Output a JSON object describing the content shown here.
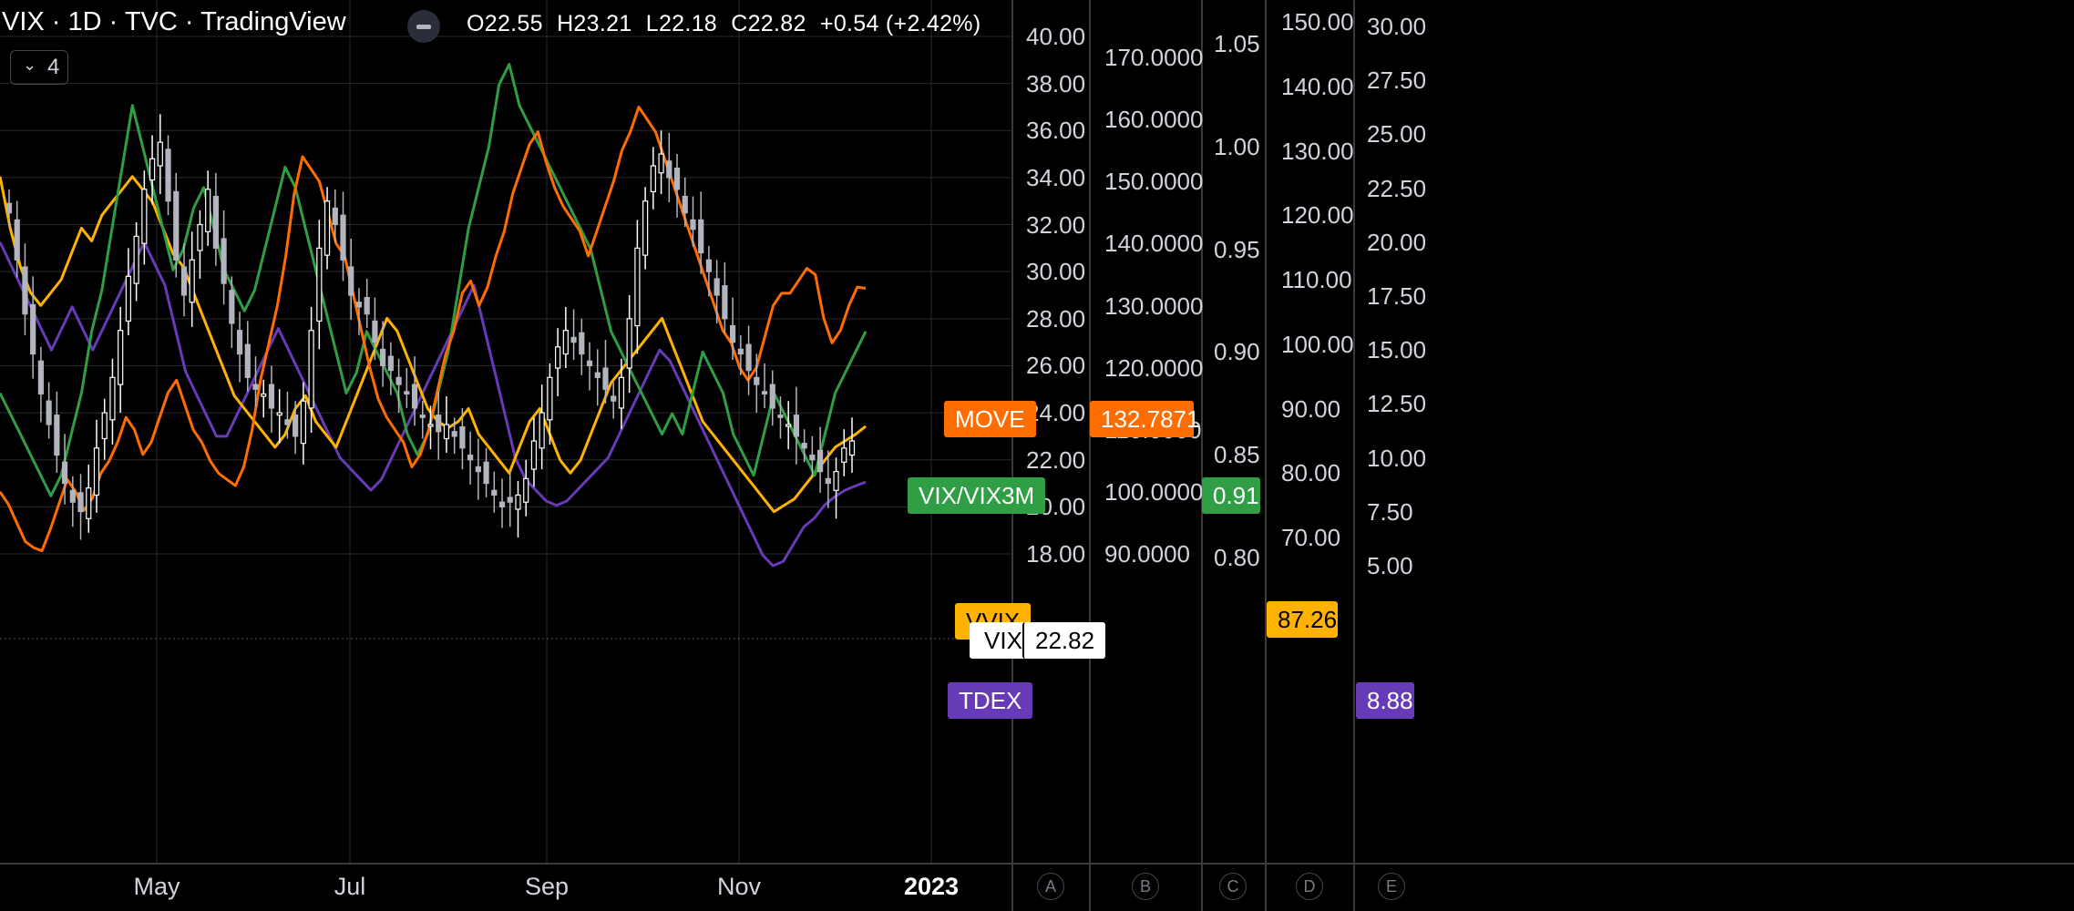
{
  "header": {
    "title": "VIX · 1D · TVC · TradingView",
    "open": "O22.55",
    "high": "H23.21",
    "low": "L22.18",
    "close": "C22.82",
    "change": "+0.54 (+2.42%)",
    "indicator_count": "4"
  },
  "colors": {
    "background": "#000000",
    "grid": "#2a2a2a",
    "candle_up": "#ffffff",
    "candle_down": "#b2b5be",
    "move": "#ff6d00",
    "vix_vix3m": "#2f9e44",
    "vvix": "#ffb300",
    "tdex": "#673ab7",
    "vix_tag": "#ffffff"
  },
  "chart_data": {
    "type": "line",
    "x_axis_labels": [
      "May",
      "Jul",
      "Sep",
      "Nov",
      "2023"
    ],
    "y_axes": [
      {
        "id": "main",
        "labels": [
          "40.00",
          "38.00",
          "36.00",
          "34.00",
          "32.00",
          "30.00",
          "28.00",
          "26.00",
          "24.00",
          "22.00",
          "20.00",
          "18.00"
        ],
        "values": [
          40,
          38,
          36,
          34,
          32,
          30,
          28,
          26,
          24,
          22,
          20,
          18
        ]
      },
      {
        "id": "A",
        "letter": "A"
      },
      {
        "id": "B",
        "letter": "B",
        "labels": [
          "170.0000",
          "160.0000",
          "150.0000",
          "140.0000",
          "130.0000",
          "120.0000",
          "110.0000",
          "100.0000",
          "90.0000"
        ],
        "values": [
          170,
          160,
          150,
          140,
          130,
          120,
          110,
          100,
          90
        ]
      },
      {
        "id": "C",
        "letter": "C",
        "labels": [
          "1.05",
          "1.00",
          "0.95",
          "0.90",
          "0.85",
          "0.80"
        ],
        "values": [
          1.05,
          1.0,
          0.95,
          0.9,
          0.85,
          0.8
        ]
      },
      {
        "id": "D",
        "letter": "D",
        "labels": [
          "150.00",
          "140.00",
          "130.00",
          "120.00",
          "110.00",
          "100.00",
          "90.00",
          "80.00",
          "70.00"
        ],
        "values": [
          150,
          140,
          130,
          120,
          110,
          100,
          90,
          80,
          70
        ]
      },
      {
        "id": "E",
        "letter": "E",
        "labels": [
          "30.00",
          "27.50",
          "25.00",
          "22.50",
          "20.00",
          "17.50",
          "15.00",
          "12.50",
          "10.00",
          "7.50",
          "5.00"
        ],
        "values": [
          30,
          27.5,
          25,
          22.5,
          20,
          17.5,
          15,
          12.5,
          10,
          7.5,
          5
        ]
      }
    ],
    "series": [
      {
        "name": "VIX",
        "axis": "main",
        "type": "candlestick",
        "last_value": "22.82",
        "closes": [
          32.5,
          30.5,
          28.2,
          26.5,
          24.8,
          23.5,
          22.2,
          21.0,
          20.2,
          19.8,
          20.8,
          22.5,
          24.0,
          25.5,
          27.5,
          29.8,
          31.5,
          33.5,
          34.8,
          35.5,
          33.0,
          30.5,
          29.0,
          30.5,
          32.0,
          33.5,
          31.0,
          29.5,
          27.8,
          26.5,
          25.5,
          25.0,
          24.8,
          24.2,
          24.0,
          23.5,
          23.0,
          24.5,
          27.5,
          31.0,
          33.0,
          32.0,
          30.5,
          29.0,
          28.5,
          28.2,
          27.0,
          26.0,
          25.8,
          25.2,
          24.8,
          24.2,
          23.8,
          23.5,
          23.2,
          23.5,
          23.0,
          22.5,
          22.0,
          21.5,
          21.0,
          20.5,
          20.0,
          20.2,
          20.5,
          21.2,
          22.8,
          24.0,
          25.5,
          26.8,
          27.5,
          27.0,
          26.5,
          26.0,
          25.5,
          25.0,
          24.5,
          25.5,
          28.0,
          31.0,
          33.0,
          34.5,
          35.0,
          34.0,
          33.5,
          32.5,
          31.8,
          30.8,
          30.0,
          29.0,
          28.0,
          27.0,
          26.5,
          25.8,
          25.2,
          24.8,
          24.2,
          23.8,
          23.5,
          23.0,
          22.5,
          22.0,
          21.5,
          21.0,
          21.5,
          22.5,
          22.8
        ]
      },
      {
        "name": "MOVE",
        "axis": "B",
        "last_value": "132.7871",
        "values": [
          100,
          98,
          95,
          92,
          91,
          90.5,
          94,
          98,
          102,
          100,
          97,
          99,
          103,
          105,
          108,
          112,
          110,
          106,
          108,
          112,
          116,
          118,
          114,
          110,
          108,
          105,
          103,
          102,
          101,
          104,
          110,
          118,
          124,
          130,
          138,
          148,
          154,
          152,
          150,
          145,
          140,
          138,
          132,
          126,
          120,
          115,
          112,
          110,
          108,
          104,
          106,
          110,
          116,
          122,
          126,
          132,
          134,
          130,
          133,
          138,
          142,
          148,
          152,
          156,
          158,
          153,
          149,
          146,
          144,
          142,
          138,
          142,
          146,
          150,
          155,
          158,
          162,
          160,
          158,
          154,
          150,
          146,
          142,
          138,
          134,
          130,
          126,
          124,
          120,
          118,
          120,
          125,
          130,
          132,
          132,
          134,
          136,
          135,
          128,
          124,
          126,
          130,
          133,
          132.79
        ]
      },
      {
        "name": "VIX/VIX3M",
        "axis": "C",
        "last_value": "0.91",
        "values": [
          0.88,
          0.87,
          0.86,
          0.85,
          0.84,
          0.83,
          0.84,
          0.86,
          0.88,
          0.91,
          0.93,
          0.96,
          0.99,
          1.02,
          1.0,
          0.98,
          0.96,
          0.94,
          0.95,
          0.97,
          0.98,
          0.96,
          0.94,
          0.93,
          0.92,
          0.93,
          0.95,
          0.97,
          0.99,
          0.98,
          0.96,
          0.94,
          0.92,
          0.9,
          0.88,
          0.89,
          0.91,
          0.9,
          0.89,
          0.88,
          0.86,
          0.85,
          0.86,
          0.88,
          0.9,
          0.93,
          0.96,
          0.98,
          1.0,
          1.03,
          1.04,
          1.02,
          1.01,
          1.0,
          0.99,
          0.98,
          0.97,
          0.96,
          0.95,
          0.93,
          0.91,
          0.9,
          0.89,
          0.88,
          0.87,
          0.86,
          0.87,
          0.86,
          0.88,
          0.9,
          0.89,
          0.88,
          0.86,
          0.85,
          0.84,
          0.86,
          0.88,
          0.87,
          0.86,
          0.85,
          0.84,
          0.86,
          0.88,
          0.89,
          0.9,
          0.91
        ]
      },
      {
        "name": "VVIX",
        "axis": "D",
        "last_value": "87.26",
        "values": [
          126,
          118,
          112,
          108,
          106,
          108,
          110,
          114,
          118,
          116,
          120,
          122,
          124,
          126,
          124,
          122,
          118,
          114,
          112,
          108,
          104,
          100,
          96,
          92,
          90,
          88,
          86,
          84,
          86,
          90,
          92,
          88,
          86,
          84,
          88,
          92,
          96,
          100,
          104,
          102,
          98,
          94,
          90,
          88,
          87,
          88,
          90,
          86,
          84,
          82,
          80,
          84,
          88,
          90,
          86,
          82,
          80,
          82,
          86,
          90,
          94,
          96,
          98,
          100,
          102,
          104,
          100,
          96,
          92,
          88,
          86,
          84,
          82,
          80,
          78,
          76,
          74,
          75,
          76,
          78,
          80,
          82,
          84,
          85,
          86,
          87.26
        ]
      },
      {
        "name": "TDEX",
        "axis": "E",
        "last_value": "8.88",
        "values": [
          20,
          19,
          18,
          17,
          16,
          15,
          16,
          17,
          16,
          15,
          16,
          17,
          18,
          19,
          20,
          19,
          18,
          16,
          14,
          13,
          12,
          11,
          11,
          12,
          13,
          14,
          15,
          16,
          15,
          14,
          13,
          12,
          11,
          10,
          9.5,
          9,
          8.5,
          9,
          10,
          11,
          12,
          13,
          14,
          15,
          16,
          17,
          18,
          16,
          14,
          12,
          10,
          9,
          8.5,
          8,
          7.8,
          8,
          8.5,
          9,
          9.5,
          10,
          11,
          12,
          13,
          14,
          15,
          14.5,
          13.5,
          12.5,
          11.5,
          10.5,
          9.5,
          8.5,
          7.5,
          6.5,
          5.5,
          5,
          5.2,
          6,
          6.8,
          7.2,
          7.8,
          8.2,
          8.5,
          8.7,
          8.88
        ]
      }
    ]
  },
  "tags": {
    "move": "MOVE",
    "vix_vix3m": "VIX/VIX3M",
    "vvix": "VVIX",
    "vix": "VIX",
    "vix_value": "22.82",
    "tdex": "TDEX",
    "move_value": "132.7871",
    "ratio_value": "0.91",
    "vvix_value": "87.26",
    "tdex_value": "8.88"
  }
}
